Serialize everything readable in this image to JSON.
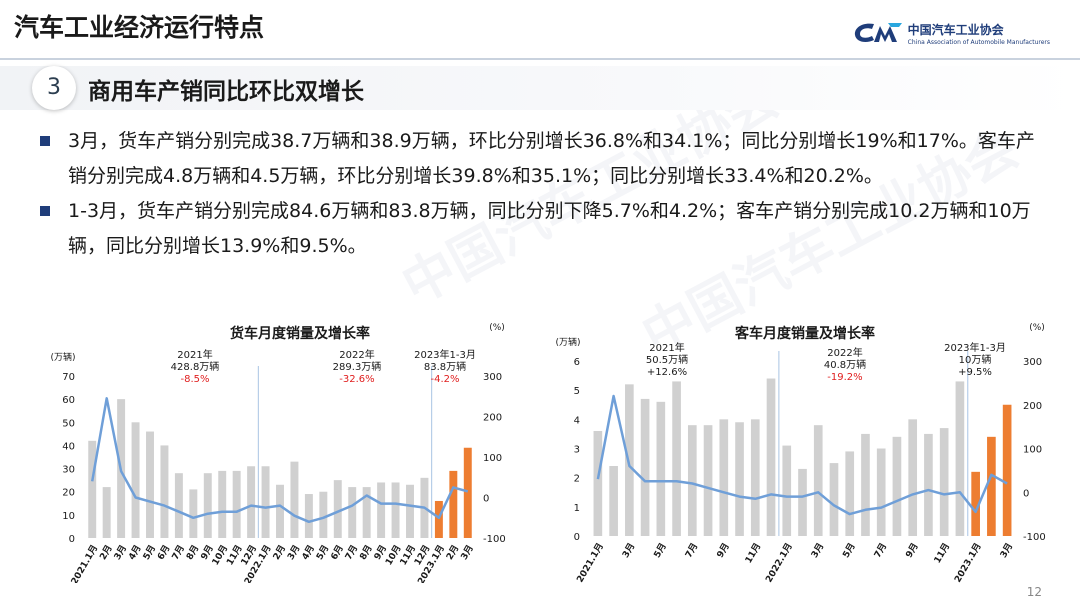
{
  "header": {
    "title": "汽车工业经济运行特点"
  },
  "logo": {
    "cn": "中国汽车工业协会",
    "en": "China Association of Automobile Manufacturers",
    "watermark": "中国汽车工业协会"
  },
  "section": {
    "number": "3",
    "title": "商用车产销同比环比双增长"
  },
  "bullets": [
    "3月，货车产销分别完成38.7万辆和38.9万辆，环比分别增长36.8%和34.1%；同比分别增长19%和17%。客车产销分别完成4.8万辆和4.5万辆，环比分别增长39.8%和35.1%；同比分别增长33.4%和20.2%。",
    "1-3月，货车产销分别完成84.6万辆和83.8万辆，同比分别下降5.7%和4.2%；客车产销分别完成10.2万辆和10万辆，同比分别增长13.9%和9.5%。"
  ],
  "page_number": "12",
  "colors": {
    "gray_bar": "#d0d0d0",
    "orange_bar": "#ed7d31",
    "line": "#6f9fd8",
    "red": "#e02020",
    "navy": "#1f3d7a"
  },
  "chart_data": [
    {
      "type": "bar",
      "title": "货车月度销量及增长率",
      "ylabel_left": "(万辆)",
      "ylabel_right": "(%)",
      "ylim_left": [
        0,
        70
      ],
      "ylim_right": [
        -100,
        300
      ],
      "left_ticks": [
        "0",
        "10",
        "20",
        "30",
        "40",
        "50",
        "60",
        "70"
      ],
      "right_ticks": [
        "-100",
        "0",
        "100",
        "200",
        "300"
      ],
      "x_labels": [
        "2021.1月",
        "2月",
        "3月",
        "4月",
        "5月",
        "6月",
        "7月",
        "8月",
        "9月",
        "10月",
        "11月",
        "12月",
        "2022.1月",
        "2月",
        "3月",
        "4月",
        "5月",
        "6月",
        "7月",
        "8月",
        "9月",
        "10月",
        "11月",
        "12月",
        "2023.1月",
        "2月",
        "3月"
      ],
      "volume": [
        42,
        22,
        60,
        50,
        46,
        40,
        28,
        21,
        28,
        29,
        29,
        31,
        31,
        23,
        33,
        19,
        20,
        25,
        22,
        22,
        24,
        24,
        23,
        26,
        16,
        29,
        39
      ],
      "growth": [
        40,
        245,
        65,
        0,
        -10,
        -20,
        -35,
        -50,
        -40,
        -35,
        -35,
        -20,
        -25,
        -20,
        -45,
        -60,
        -50,
        -35,
        -20,
        5,
        -15,
        -15,
        -20,
        -25,
        -50,
        25,
        15
      ],
      "highlight_from": 24,
      "annotations": [
        {
          "period": "2021年",
          "value": "428.8万辆",
          "change": "-8.5%"
        },
        {
          "period": "2022年",
          "value": "289.3万辆",
          "change": "-32.6%"
        },
        {
          "period": "2023年1-3月",
          "value": "83.8万辆",
          "change": "-4.2%"
        }
      ]
    },
    {
      "type": "bar",
      "title": "客车月度销量及增长率",
      "ylabel_left": "(万辆)",
      "ylabel_right": "(%)",
      "ylim_left": [
        0,
        6
      ],
      "ylim_right": [
        -100,
        300
      ],
      "left_ticks": [
        "0",
        "1",
        "2",
        "3",
        "4",
        "5",
        "6"
      ],
      "right_ticks": [
        "-100",
        "0",
        "100",
        "200",
        "300"
      ],
      "x_labels": [
        "2021.1月",
        "3月",
        "5月",
        "7月",
        "9月",
        "11月",
        "2022.1月",
        "3月",
        "5月",
        "7月",
        "9月",
        "11月",
        "2023.1月",
        "3月"
      ],
      "x_label_positions": [
        0,
        2,
        4,
        6,
        8,
        10,
        12,
        14,
        16,
        18,
        20,
        22,
        24,
        26
      ],
      "volume": [
        3.6,
        2.4,
        5.2,
        4.7,
        4.6,
        5.3,
        3.8,
        3.8,
        4.0,
        3.9,
        4.0,
        5.4,
        3.1,
        2.3,
        3.8,
        2.5,
        2.9,
        3.5,
        3.0,
        3.4,
        4.0,
        3.5,
        3.7,
        5.3,
        2.2,
        3.4,
        4.5
      ],
      "growth": [
        30,
        220,
        60,
        25,
        25,
        25,
        20,
        10,
        0,
        -10,
        -15,
        -5,
        -10,
        -10,
        0,
        -30,
        -50,
        -40,
        -35,
        -20,
        -5,
        5,
        -5,
        0,
        -45,
        40,
        20
      ],
      "highlight_from": 24,
      "annotations": [
        {
          "period": "2021年",
          "value": "50.5万辆",
          "change": "+12.6%"
        },
        {
          "period": "2022年",
          "value": "40.8万辆",
          "change": "-19.2%"
        },
        {
          "period": "2023年1-3月",
          "value": "10万辆",
          "change": "+9.5%"
        }
      ]
    }
  ]
}
